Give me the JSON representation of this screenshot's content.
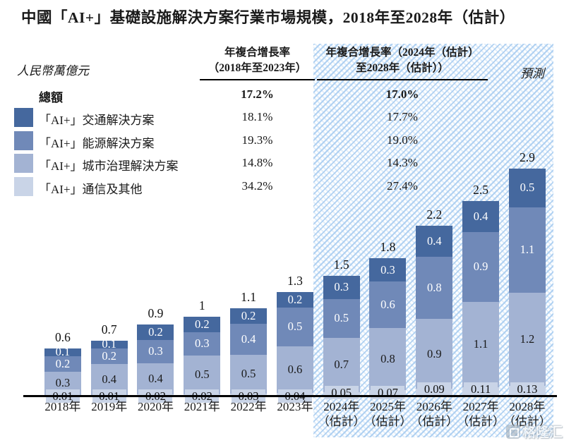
{
  "title": "中國「AI+」基礎設施解決方案行業市場規模，2018年至2028年（估計）",
  "unit_label": "人民幣萬億元",
  "forecast_label": "預測",
  "watermark": "格隆汇",
  "cagr_table": {
    "col1_header": [
      "年複合增長率",
      "（2018年至2023年）"
    ],
    "col2_header": [
      "年複合增長率（2024年（估計）",
      "至2028年（估計））"
    ],
    "rows": [
      {
        "label": "總額",
        "bold": true,
        "swatch_color": null,
        "cagr_2018_2023": "17.2%",
        "cagr_2024_2028": "17.0%"
      },
      {
        "label": "「AI+」交通解決方案",
        "bold": false,
        "swatch_color": "#45689e",
        "cagr_2018_2023": "18.1%",
        "cagr_2024_2028": "17.7%"
      },
      {
        "label": "「AI+」能源解決方案",
        "bold": false,
        "swatch_color": "#7089b8",
        "cagr_2018_2023": "19.3%",
        "cagr_2024_2028": "19.0%"
      },
      {
        "label": "「AI+」城市治理解決方案",
        "bold": false,
        "swatch_color": "#a3b3d3",
        "cagr_2018_2023": "14.8%",
        "cagr_2024_2028": "14.3%"
      },
      {
        "label": "「AI+」通信及其他",
        "bold": false,
        "swatch_color": "#c9d4e7",
        "cagr_2018_2023": "34.2%",
        "cagr_2024_2028": "27.4%"
      }
    ]
  },
  "chart_data": {
    "type": "bar",
    "stacked": true,
    "title": "中國「AI+」基礎設施解決方案行業市場規模，2018年至2028年（估計）",
    "ylabel": "人民幣萬億元",
    "xlabel": "",
    "grid": false,
    "ylim": [
      0,
      3.0
    ],
    "forecast_from_index": 6,
    "categories": [
      {
        "label": "2018年",
        "sublabel": ""
      },
      {
        "label": "2019年",
        "sublabel": ""
      },
      {
        "label": "2020年",
        "sublabel": ""
      },
      {
        "label": "2021年",
        "sublabel": ""
      },
      {
        "label": "2022年",
        "sublabel": ""
      },
      {
        "label": "2023年",
        "sublabel": ""
      },
      {
        "label": "2024年",
        "sublabel": "（估計）"
      },
      {
        "label": "2025年",
        "sublabel": "（估計）"
      },
      {
        "label": "2026年",
        "sublabel": "（估計）"
      },
      {
        "label": "2027年",
        "sublabel": "（估計）"
      },
      {
        "label": "2028年",
        "sublabel": "（估計）"
      }
    ],
    "series": [
      {
        "name": "「AI+」通信及其他",
        "key": "telecom-other",
        "color": "#c9d4e7",
        "label_color": "#111111",
        "values": [
          0.01,
          0.01,
          0.02,
          0.02,
          0.03,
          0.04,
          0.05,
          0.07,
          0.09,
          0.11,
          0.13
        ]
      },
      {
        "name": "「AI+」城市治理解決方案",
        "key": "city-governance",
        "color": "#a3b3d3",
        "label_color": "#111111",
        "values": [
          0.3,
          0.4,
          0.4,
          0.5,
          0.5,
          0.6,
          0.7,
          0.8,
          0.9,
          1.1,
          1.2
        ]
      },
      {
        "name": "「AI+」能源解決方案",
        "key": "energy",
        "color": "#7089b8",
        "label_color": "#ffffff",
        "values": [
          0.2,
          0.2,
          0.3,
          0.3,
          0.4,
          0.5,
          0.5,
          0.6,
          0.8,
          0.9,
          1.1
        ]
      },
      {
        "name": "「AI+」交通解決方案",
        "key": "transport",
        "color": "#45689e",
        "label_color": "#ffffff",
        "values": [
          0.1,
          0.1,
          0.2,
          0.2,
          0.2,
          0.2,
          0.3,
          0.3,
          0.4,
          0.4,
          0.5
        ]
      }
    ],
    "totals": [
      0.6,
      0.7,
      0.9,
      1.0,
      1.1,
      1.3,
      1.5,
      1.8,
      2.2,
      2.5,
      2.9
    ]
  }
}
